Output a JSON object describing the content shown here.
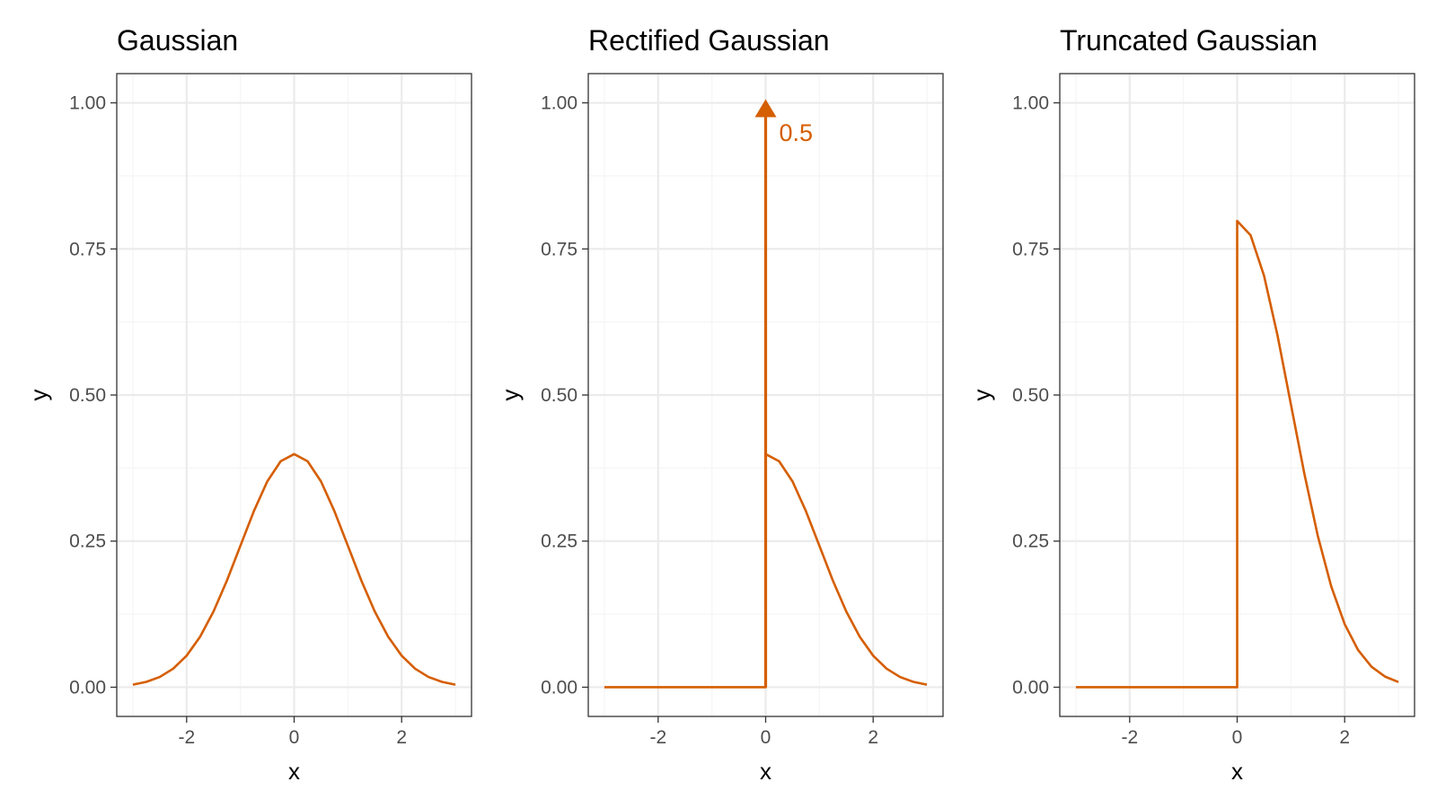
{
  "colors": {
    "line": "#d55e00",
    "grid_major": "#ebebeb",
    "grid_minor": "#f5f5f5",
    "panel_border": "#333333",
    "tick_text": "#4d4d4d"
  },
  "chart_data": [
    {
      "type": "line",
      "title": "Gaussian",
      "xlabel": "x",
      "ylabel": "y",
      "xlim": [
        -3.3,
        3.3
      ],
      "ylim": [
        -0.05,
        1.05
      ],
      "x_ticks": [
        -2,
        0,
        2
      ],
      "x_tick_labels": [
        "-2",
        "0",
        "2"
      ],
      "y_ticks": [
        0,
        0.25,
        0.5,
        0.75,
        1.0
      ],
      "y_tick_labels": [
        "0.00",
        "0.25",
        "0.50",
        "0.75",
        "1.00"
      ],
      "grid": true,
      "series": [
        {
          "x": [
            -3.0,
            -2.75,
            -2.5,
            -2.25,
            -2.0,
            -1.75,
            -1.5,
            -1.25,
            -1.0,
            -0.75,
            -0.5,
            -0.25,
            0.0,
            0.25,
            0.5,
            0.75,
            1.0,
            1.25,
            1.5,
            1.75,
            2.0,
            2.25,
            2.5,
            2.75,
            3.0
          ],
          "y": [
            0.0044,
            0.0091,
            0.0175,
            0.0317,
            0.054,
            0.0863,
            0.1295,
            0.1826,
            0.242,
            0.3011,
            0.3521,
            0.3867,
            0.3989,
            0.3867,
            0.3521,
            0.3011,
            0.242,
            0.1826,
            0.1295,
            0.0863,
            0.054,
            0.0317,
            0.0175,
            0.0091,
            0.0044
          ]
        }
      ]
    },
    {
      "type": "line",
      "title": "Rectified Gaussian",
      "xlabel": "x",
      "ylabel": "y",
      "xlim": [
        -3.3,
        3.3
      ],
      "ylim": [
        -0.05,
        1.05
      ],
      "x_ticks": [
        -2,
        0,
        2
      ],
      "x_tick_labels": [
        "-2",
        "0",
        "2"
      ],
      "y_ticks": [
        0,
        0.25,
        0.5,
        0.75,
        1.0
      ],
      "y_tick_labels": [
        "0.00",
        "0.25",
        "0.50",
        "0.75",
        "1.00"
      ],
      "grid": true,
      "series": [
        {
          "x": [
            -3.0,
            -0.01,
            0.0,
            0.0,
            0.25,
            0.5,
            0.75,
            1.0,
            1.25,
            1.5,
            1.75,
            2.0,
            2.25,
            2.5,
            2.75,
            3.0
          ],
          "y": [
            0.0,
            0.0,
            0.0,
            0.3989,
            0.3867,
            0.3521,
            0.3011,
            0.242,
            0.1826,
            0.1295,
            0.0863,
            0.054,
            0.0317,
            0.0175,
            0.0091,
            0.0044
          ]
        }
      ],
      "spike": {
        "x": 0,
        "y_start": 0,
        "y_end": 1.0,
        "label": "0.5",
        "label_x": 0.25,
        "label_y": 0.95
      }
    },
    {
      "type": "line",
      "title": "Truncated Gaussian",
      "xlabel": "x",
      "ylabel": "y",
      "xlim": [
        -3.3,
        3.3
      ],
      "ylim": [
        -0.05,
        1.05
      ],
      "x_ticks": [
        -2,
        0,
        2
      ],
      "x_tick_labels": [
        "-2",
        "0",
        "2"
      ],
      "y_ticks": [
        0,
        0.25,
        0.5,
        0.75,
        1.0
      ],
      "y_tick_labels": [
        "0.00",
        "0.25",
        "0.50",
        "0.75",
        "1.00"
      ],
      "grid": true,
      "series": [
        {
          "x": [
            -3.0,
            -0.01,
            0.0,
            0.0,
            0.25,
            0.5,
            0.75,
            1.0,
            1.25,
            1.5,
            1.75,
            2.0,
            2.25,
            2.5,
            2.75,
            3.0
          ],
          "y": [
            0.0,
            0.0,
            0.0,
            0.7979,
            0.7734,
            0.7041,
            0.6023,
            0.4839,
            0.3653,
            0.259,
            0.1725,
            0.108,
            0.0635,
            0.035,
            0.0182,
            0.0089
          ]
        }
      ]
    }
  ]
}
